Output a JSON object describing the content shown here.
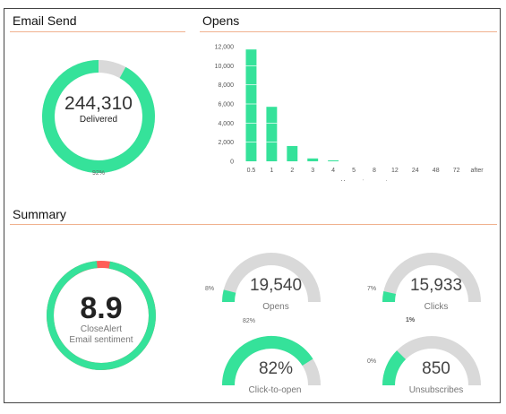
{
  "colors": {
    "accent": "#35e29a",
    "track": "#d9d9d9",
    "warn": "#ff5d57",
    "rule": "#f0b28f"
  },
  "email_send": {
    "title": "Email Send",
    "value": "244,310",
    "label": "Delivered",
    "percent_text": "92%",
    "fraction": 0.92
  },
  "opens_chart": {
    "title": "Opens",
    "chart_data": {
      "type": "bar",
      "title": "Opens",
      "xlabel": "Hours since sent",
      "ylabel": "",
      "categories": [
        "0.5",
        "1",
        "2",
        "3",
        "4",
        "5",
        "8",
        "12",
        "24",
        "48",
        "72",
        "after"
      ],
      "values": [
        11700,
        5700,
        1600,
        300,
        100,
        0,
        0,
        0,
        0,
        0,
        0,
        0
      ],
      "ylim": [
        0,
        12000
      ],
      "yticks": [
        "12,000",
        "10,000",
        "8,000",
        "6,000",
        "4,000",
        "2,000",
        "0"
      ],
      "grid": true
    }
  },
  "summary": {
    "title": "Summary",
    "sentiment": {
      "value": "8.9",
      "line1": "CloseAlert",
      "line2": "Email sentiment",
      "fraction_green": 0.96
    },
    "gauges": [
      {
        "id": "opens",
        "value": "19,540",
        "label": "Opens",
        "pct_text": "8%",
        "fraction": 0.08
      },
      {
        "id": "clicks",
        "value": "15,933",
        "label": "Clicks",
        "pct_text": "7%",
        "fraction": 0.07
      },
      {
        "id": "click-to-open",
        "value": "82%",
        "label": "Click-to-open",
        "pct_text": "82%",
        "fraction": 0.82
      },
      {
        "id": "unsubscribes",
        "value": "850",
        "label": "Unsubscribes",
        "pct_text": "0%",
        "pct_text2": "1%",
        "fraction": 0.25
      }
    ]
  }
}
